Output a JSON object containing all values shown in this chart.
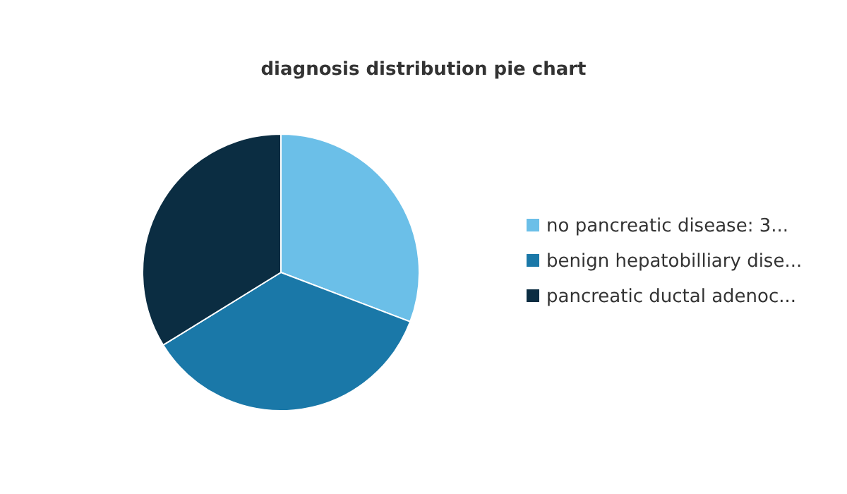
{
  "chart_data": {
    "type": "pie",
    "title": "diagnosis distribution pie chart",
    "categories": [
      "no pancreatic disease: 3...",
      "benign hepatobilliary dise...",
      "pancreatic ductal adenoc..."
    ],
    "values": [
      30.8,
      35.4,
      33.8
    ],
    "colors": [
      "#6bbfe8",
      "#1a78a8",
      "#0b2d42"
    ],
    "legend": "right"
  }
}
